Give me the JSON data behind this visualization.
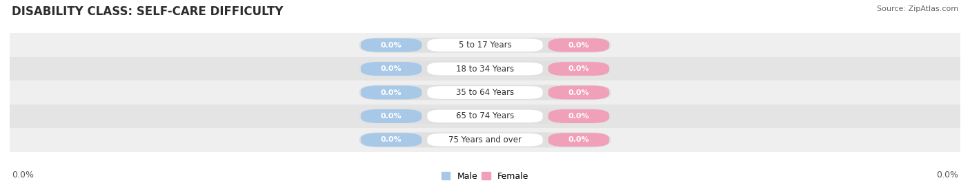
{
  "title": "DISABILITY CLASS: SELF-CARE DIFFICULTY",
  "source": "Source: ZipAtlas.com",
  "categories": [
    "5 to 17 Years",
    "18 to 34 Years",
    "35 to 64 Years",
    "65 to 74 Years",
    "75 Years and over"
  ],
  "male_values": [
    0.0,
    0.0,
    0.0,
    0.0,
    0.0
  ],
  "female_values": [
    0.0,
    0.0,
    0.0,
    0.0,
    0.0
  ],
  "male_color": "#a8c8e8",
  "female_color": "#f0a0b8",
  "row_bg_even": "#efefef",
  "row_bg_odd": "#e4e4e4",
  "pill_bg_color": "#e0e0e0",
  "title_fontsize": 12,
  "label_fontsize": 9,
  "tick_fontsize": 9,
  "left_label": "0.0%",
  "right_label": "0.0%",
  "background_color": "#ffffff"
}
